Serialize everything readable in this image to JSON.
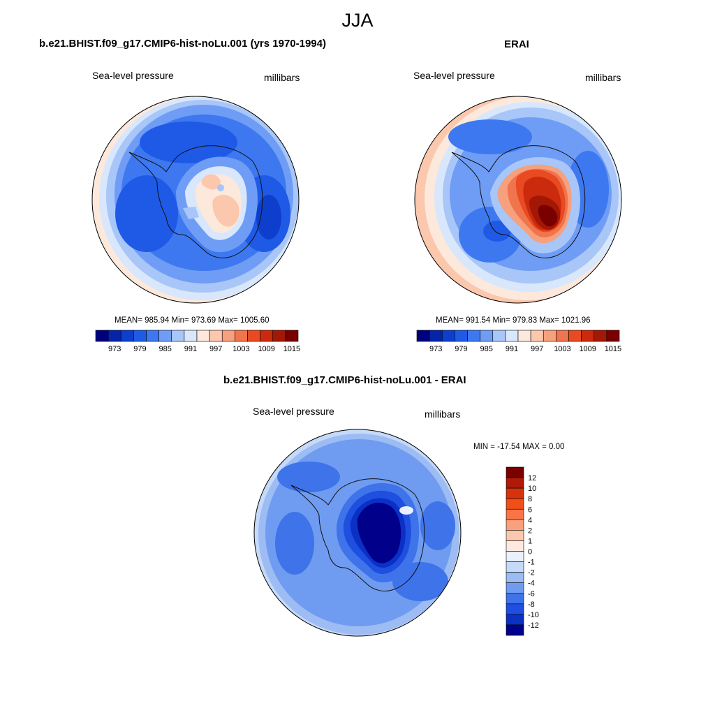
{
  "figure": {
    "title": "JJA"
  },
  "panels": [
    {
      "title": "b.e21.BHIST.f09_g17.CMIP6-hist-noLu.001 (yrs 1970-1994)",
      "left_label": "Sea-level pressure",
      "right_label": "millibars",
      "stats": "MEAN= 985.94  Min= 973.69  Max= 1005.60",
      "colorbar_labels": [
        "973",
        "979",
        "985",
        "991",
        "997",
        "1003",
        "1009",
        "1015"
      ]
    },
    {
      "title": "ERAI",
      "left_label": "Sea-level pressure",
      "right_label": "millibars",
      "stats": "MEAN= 991.54  Min= 979.83  Max= 1021.96",
      "colorbar_labels": [
        "973",
        "979",
        "985",
        "991",
        "997",
        "1003",
        "1009",
        "1015"
      ]
    },
    {
      "title": "b.e21.BHIST.f09_g17.CMIP6-hist-noLu.001 - ERAI",
      "left_label": "Sea-level pressure",
      "right_label": "millibars",
      "stats": "MIN = -17.54 MAX =   0.00",
      "colorbar_labels": [
        "12",
        "10",
        "8",
        "6",
        "4",
        "2",
        "1",
        "0",
        "-1",
        "-2",
        "-4",
        "-6",
        "-8",
        "-10",
        "-12"
      ]
    }
  ],
  "colors": {
    "abs_scale": [
      "#00007f",
      "#0524a8",
      "#0d3fcc",
      "#1e5ae6",
      "#3d78f0",
      "#6f9df5",
      "#a8c6f8",
      "#d8e7fb",
      "#fde8dc",
      "#fbc7ad",
      "#f6a07e",
      "#f0744c",
      "#e84a22",
      "#cc2a0d",
      "#a31804",
      "#7a0000"
    ],
    "diff_scale": [
      "#7a0000",
      "#b01a06",
      "#d8320c",
      "#f05018",
      "#f97548",
      "#f9a07c",
      "#fcc8ad",
      "#fde9dd",
      "#eaf1fc",
      "#c5d9f8",
      "#9dbcf3",
      "#6f9cf0",
      "#3e73ea",
      "#1e4fe0",
      "#0b30c4",
      "#00008a"
    ]
  }
}
